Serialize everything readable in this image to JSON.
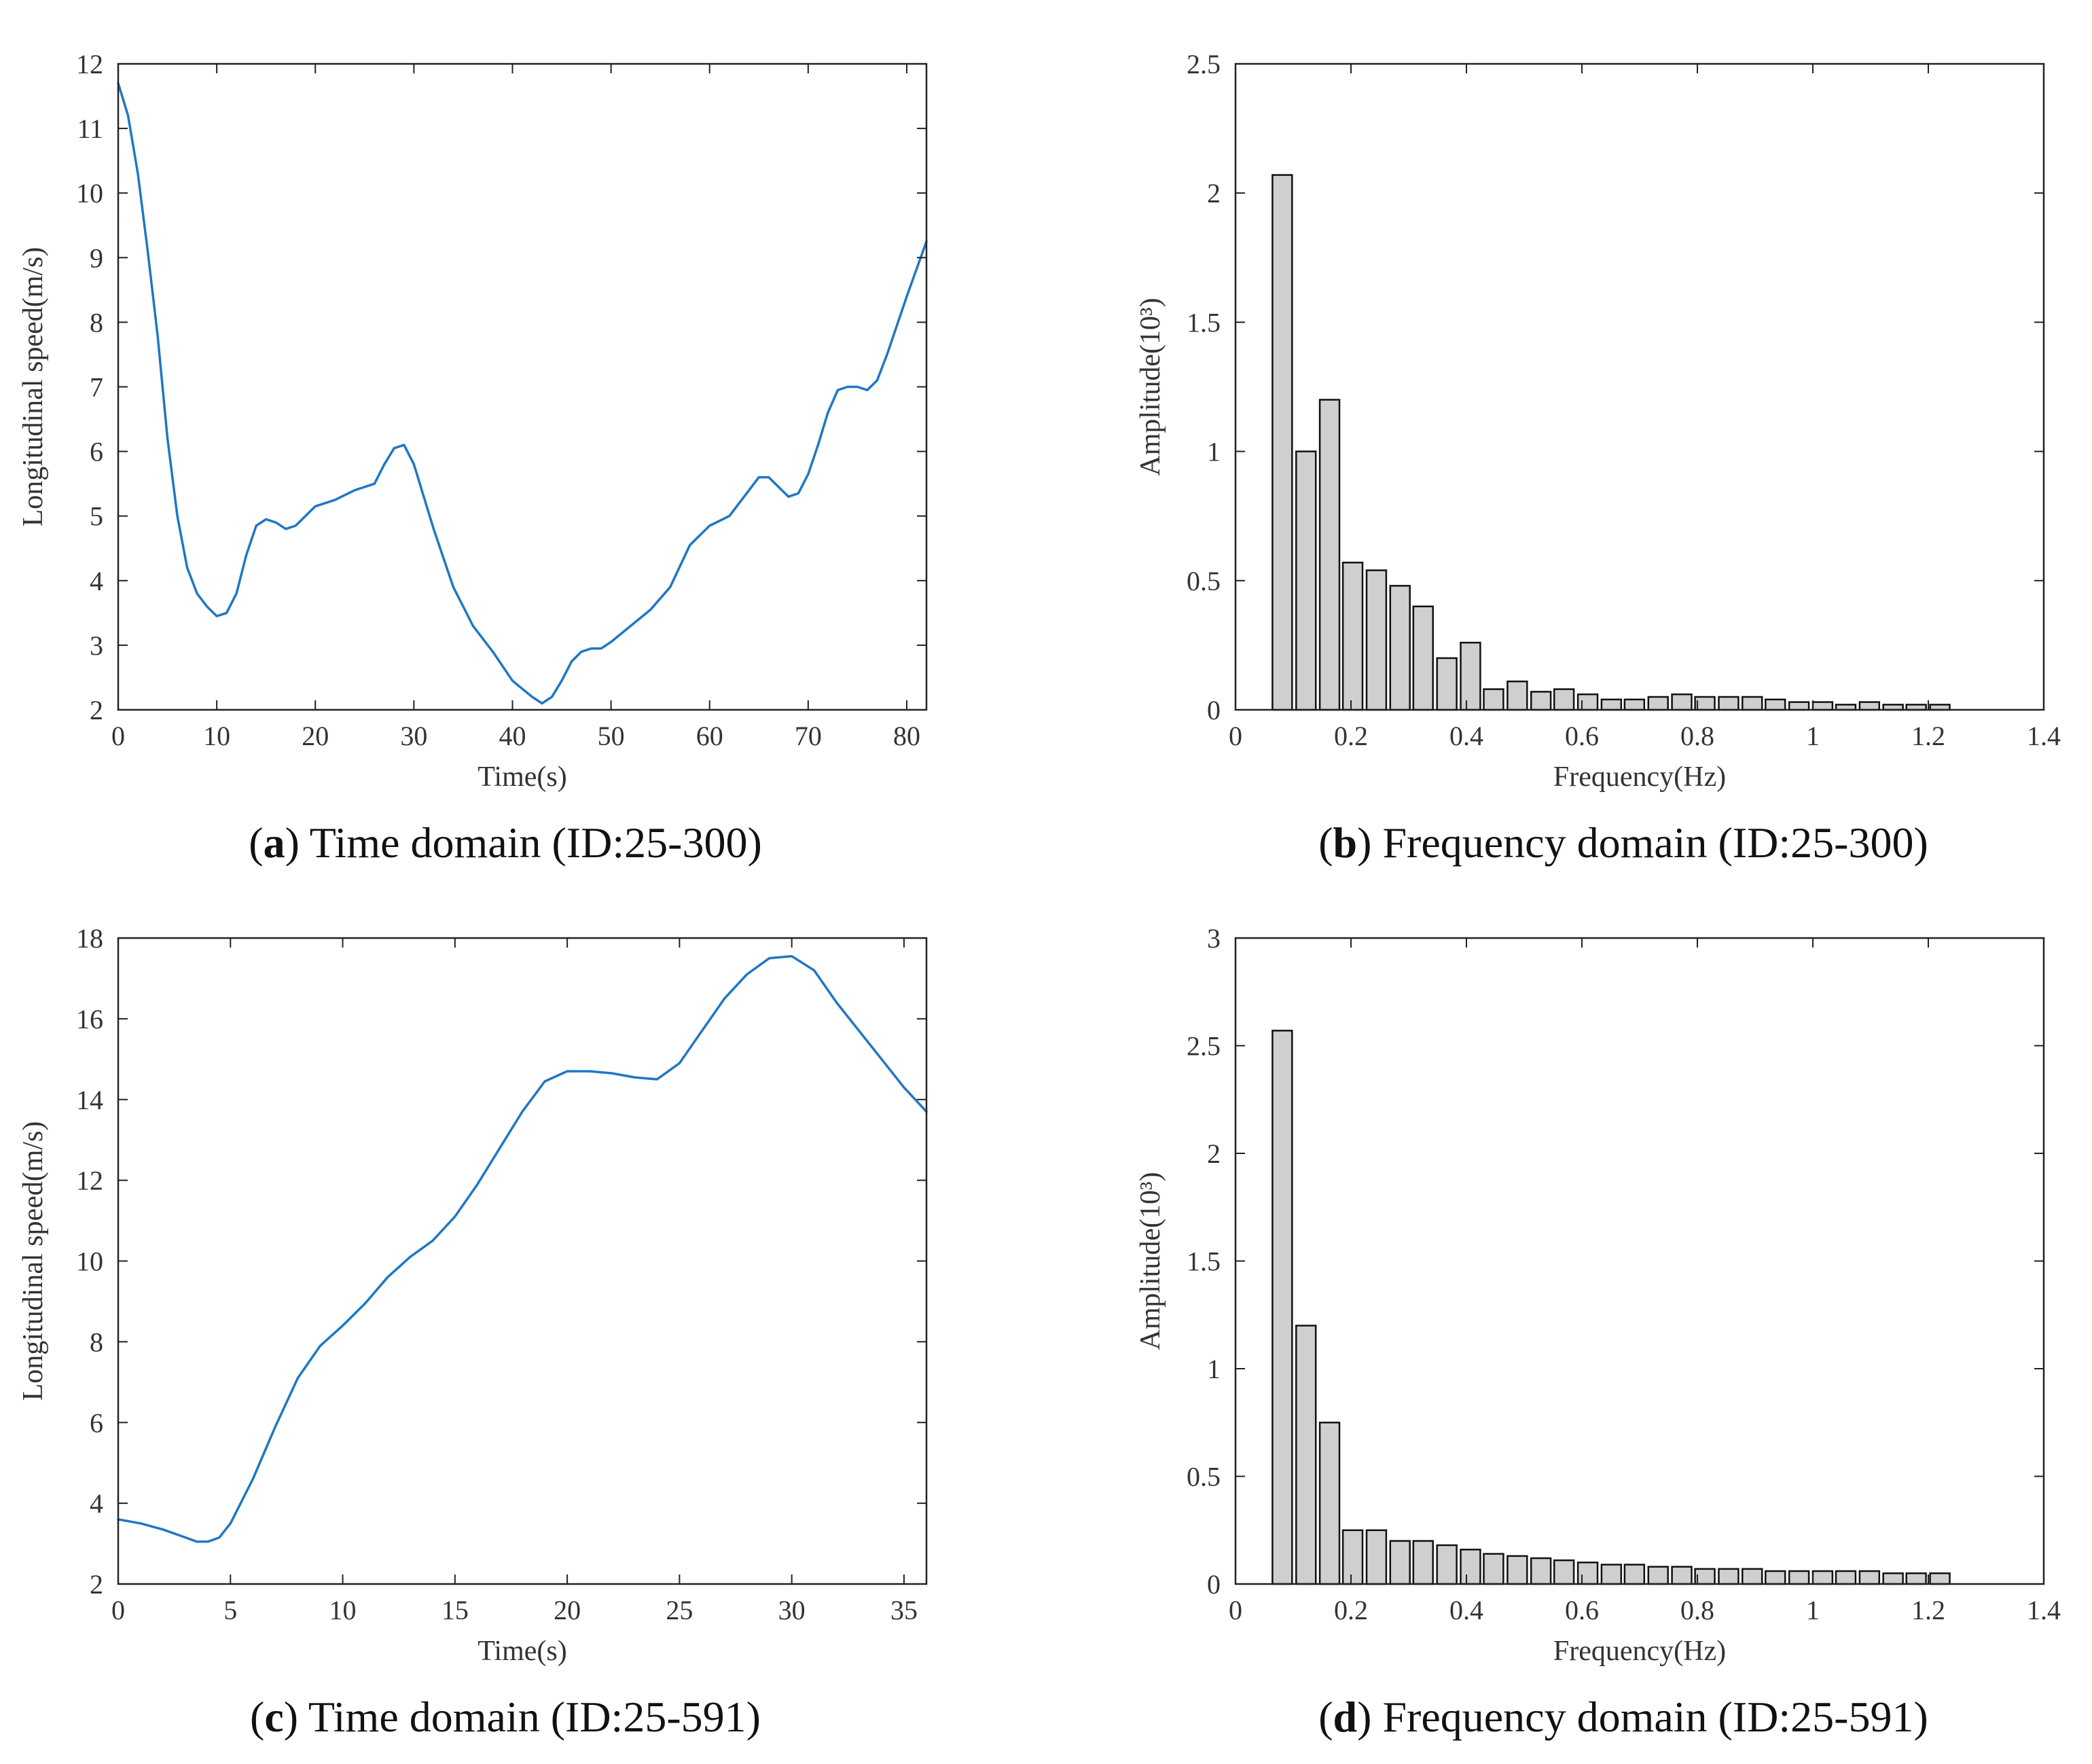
{
  "chart_data": [
    {
      "id": "a",
      "type": "line",
      "caption_letter": "a",
      "caption_text": " Time domain (ID:25-300)",
      "xlabel": "Time(s)",
      "ylabel": "Longitudinal speed(m/s)",
      "xlim": [
        0,
        82
      ],
      "ylim": [
        2,
        12
      ],
      "xticks": [
        0,
        10,
        20,
        30,
        40,
        50,
        60,
        70,
        80
      ],
      "yticks": [
        2,
        3,
        4,
        5,
        6,
        7,
        8,
        9,
        10,
        11,
        12
      ],
      "line_color": "#1f77c4",
      "series": [
        {
          "name": "Longitudinal speed",
          "x": [
            0,
            1,
            2,
            3,
            4,
            5,
            6,
            7,
            8,
            9,
            10,
            11,
            12,
            13,
            14,
            15,
            16,
            17,
            18,
            19,
            20,
            22,
            24,
            26,
            27,
            28,
            29,
            30,
            32,
            34,
            36,
            38,
            40,
            42,
            43,
            44,
            45,
            46,
            47,
            48,
            49,
            50,
            52,
            54,
            56,
            58,
            60,
            62,
            64,
            65,
            66,
            67,
            68,
            69,
            70,
            71,
            72,
            73,
            74,
            75,
            76,
            77,
            78,
            80,
            82
          ],
          "y": [
            11.7,
            11.2,
            10.3,
            9.1,
            7.8,
            6.2,
            5.0,
            4.2,
            3.8,
            3.6,
            3.45,
            3.5,
            3.8,
            4.4,
            4.85,
            4.95,
            4.9,
            4.8,
            4.85,
            5.0,
            5.15,
            5.25,
            5.4,
            5.5,
            5.8,
            6.05,
            6.1,
            5.8,
            4.8,
            3.9,
            3.3,
            2.9,
            2.45,
            2.2,
            2.1,
            2.2,
            2.45,
            2.75,
            2.9,
            2.95,
            2.95,
            3.05,
            3.3,
            3.55,
            3.9,
            4.55,
            4.85,
            5.0,
            5.4,
            5.6,
            5.6,
            5.45,
            5.3,
            5.35,
            5.65,
            6.1,
            6.6,
            6.95,
            7.0,
            7.0,
            6.95,
            7.1,
            7.5,
            8.4,
            9.25
          ]
        }
      ]
    },
    {
      "id": "b",
      "type": "bar",
      "caption_letter": "b",
      "caption_text": " Frequency domain (ID:25-300)",
      "xlabel": "Frequency(Hz)",
      "ylabel": "Amplitude(10³)",
      "xlim": [
        0,
        1.4
      ],
      "ylim": [
        0,
        2.5
      ],
      "xticks": [
        0,
        0.2,
        0.4,
        0.6,
        0.8,
        1,
        1.2,
        1.4
      ],
      "yticks": [
        0,
        0.5,
        1,
        1.5,
        2,
        2.5
      ],
      "bar_width": 0.034,
      "bar_color": "#cfcfcf",
      "x": [
        0.081,
        0.122,
        0.163,
        0.203,
        0.244,
        0.285,
        0.325,
        0.366,
        0.407,
        0.447,
        0.488,
        0.529,
        0.569,
        0.61,
        0.651,
        0.691,
        0.732,
        0.773,
        0.813,
        0.854,
        0.895,
        0.935,
        0.976,
        1.017,
        1.057,
        1.098,
        1.139,
        1.179,
        1.22
      ],
      "values": [
        2.07,
        1.0,
        1.2,
        0.57,
        0.54,
        0.48,
        0.4,
        0.2,
        0.26,
        0.08,
        0.11,
        0.07,
        0.08,
        0.06,
        0.04,
        0.04,
        0.05,
        0.06,
        0.05,
        0.05,
        0.05,
        0.04,
        0.03,
        0.03,
        0.02,
        0.03,
        0.02,
        0.02,
        0.02
      ]
    },
    {
      "id": "c",
      "type": "line",
      "caption_letter": "c",
      "caption_text": " Time domain (ID:25-591)",
      "xlabel": "Time(s)",
      "ylabel": "Longitudinal speed(m/s)",
      "xlim": [
        0,
        36
      ],
      "ylim": [
        2,
        18
      ],
      "xticks": [
        0,
        5,
        10,
        15,
        20,
        25,
        30,
        35
      ],
      "yticks": [
        2,
        4,
        6,
        8,
        10,
        12,
        14,
        16,
        18
      ],
      "line_color": "#1f77c4",
      "series": [
        {
          "name": "Longitudinal speed",
          "x": [
            0,
            1,
            2,
            3,
            3.5,
            4,
            4.5,
            5,
            6,
            7,
            8,
            9,
            10,
            11,
            12,
            13,
            14,
            15,
            16,
            17,
            18,
            19,
            20,
            21,
            22,
            23,
            24,
            25,
            26,
            27,
            28,
            29,
            30,
            31,
            32,
            33,
            34,
            35,
            36
          ],
          "y": [
            3.6,
            3.5,
            3.35,
            3.15,
            3.05,
            3.05,
            3.15,
            3.5,
            4.6,
            5.9,
            7.1,
            7.9,
            8.4,
            8.95,
            9.6,
            10.1,
            10.5,
            11.1,
            11.9,
            12.8,
            13.7,
            14.45,
            14.7,
            14.7,
            14.65,
            14.55,
            14.5,
            14.9,
            15.7,
            16.5,
            17.1,
            17.5,
            17.55,
            17.2,
            16.4,
            15.7,
            15.0,
            14.3,
            13.7
          ]
        }
      ]
    },
    {
      "id": "d",
      "type": "bar",
      "caption_letter": "d",
      "caption_text": " Frequency domain (ID:25-591)",
      "xlabel": "Frequency(Hz)",
      "ylabel": "Amplitude(10³)",
      "xlim": [
        0,
        1.4
      ],
      "ylim": [
        0,
        3
      ],
      "xticks": [
        0,
        0.2,
        0.4,
        0.6,
        0.8,
        1,
        1.2,
        1.4
      ],
      "yticks": [
        0,
        0.5,
        1,
        1.5,
        2,
        2.5,
        3
      ],
      "bar_width": 0.034,
      "bar_color": "#cfcfcf",
      "x": [
        0.081,
        0.122,
        0.163,
        0.203,
        0.244,
        0.285,
        0.325,
        0.366,
        0.407,
        0.447,
        0.488,
        0.529,
        0.569,
        0.61,
        0.651,
        0.691,
        0.732,
        0.773,
        0.813,
        0.854,
        0.895,
        0.935,
        0.976,
        1.017,
        1.057,
        1.098,
        1.139,
        1.179,
        1.22
      ],
      "values": [
        2.57,
        1.2,
        0.75,
        0.25,
        0.25,
        0.2,
        0.2,
        0.18,
        0.16,
        0.14,
        0.13,
        0.12,
        0.11,
        0.1,
        0.09,
        0.09,
        0.08,
        0.08,
        0.07,
        0.07,
        0.07,
        0.06,
        0.06,
        0.06,
        0.06,
        0.06,
        0.05,
        0.05,
        0.05
      ]
    }
  ]
}
